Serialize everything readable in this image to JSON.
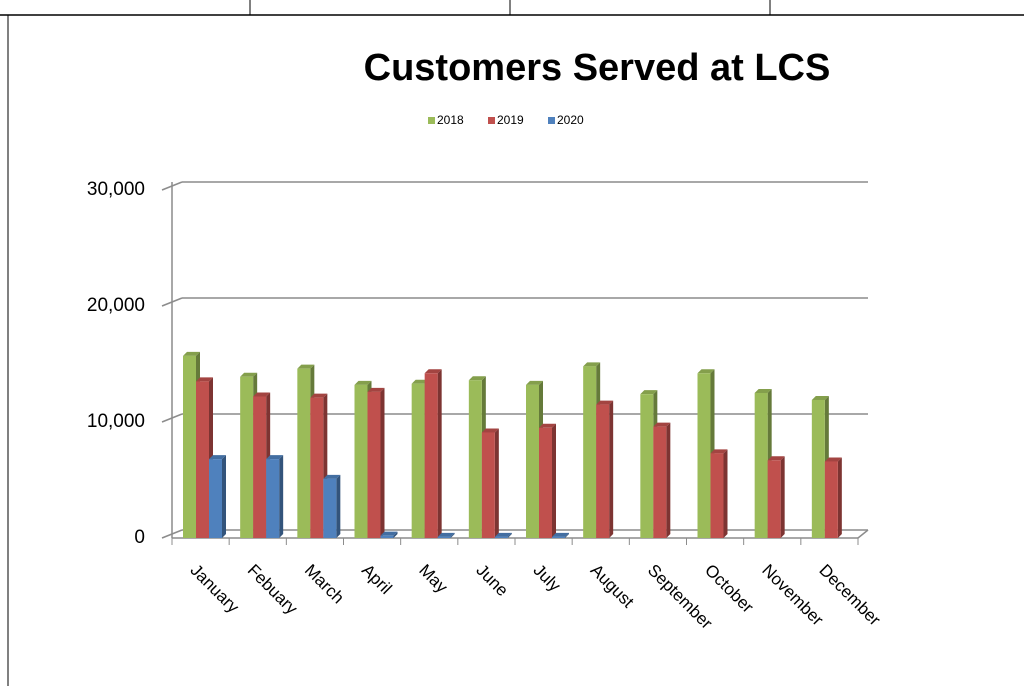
{
  "chart_data": {
    "type": "bar",
    "title": "Customers Served at LCS",
    "categories": [
      "January",
      "Febuary",
      "March",
      "April",
      "May",
      "June",
      "July",
      "August",
      "September",
      "October",
      "November",
      "December"
    ],
    "series": [
      {
        "name": "2018",
        "color": "#9bbb59",
        "values": [
          15700,
          13900,
          14600,
          13200,
          13300,
          13600,
          13200,
          14800,
          12400,
          14200,
          12500,
          11900
        ]
      },
      {
        "name": "2019",
        "color": "#c0504d",
        "values": [
          13500,
          12200,
          12100,
          12600,
          14200,
          9100,
          9500,
          11500,
          9600,
          7300,
          6700,
          6600
        ]
      },
      {
        "name": "2020",
        "color": "#4f81bd",
        "values": [
          6800,
          6800,
          5100,
          200,
          100,
          100,
          100,
          null,
          null,
          null,
          null,
          null
        ]
      }
    ],
    "ylim": [
      0,
      30000
    ],
    "yticks": [
      {
        "value": 0,
        "label": "0"
      },
      {
        "value": 10000,
        "label": "10,000"
      },
      {
        "value": 20000,
        "label": "20,000"
      },
      {
        "value": 30000,
        "label": "30,000"
      }
    ],
    "grid": true,
    "legend": "top"
  }
}
